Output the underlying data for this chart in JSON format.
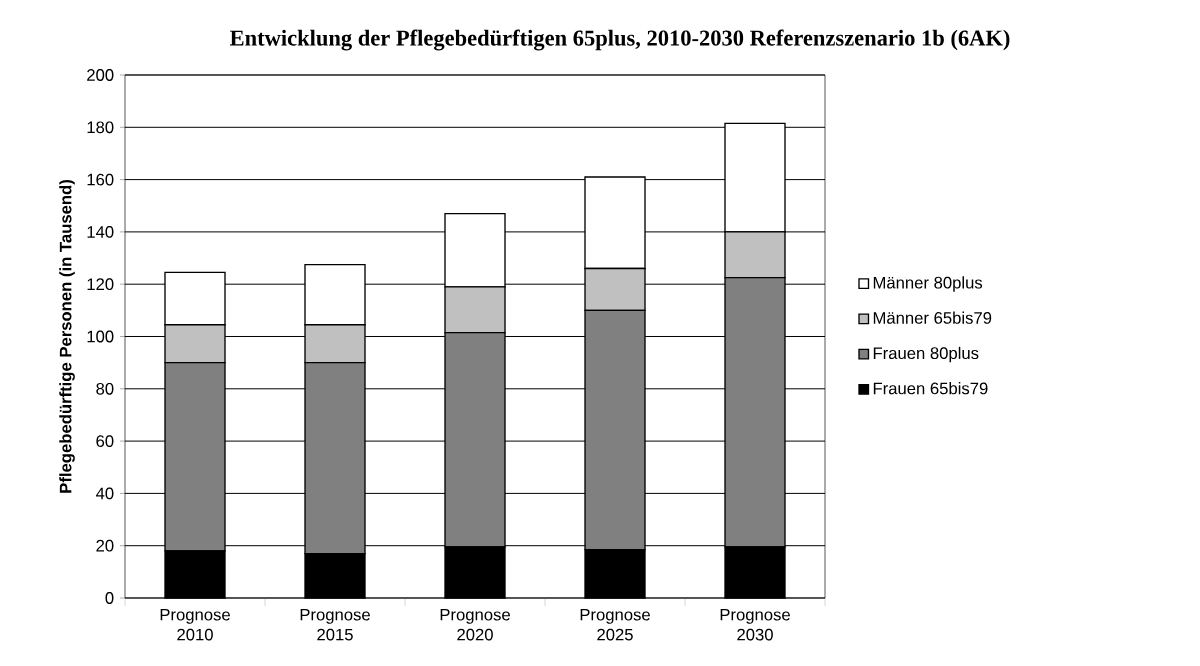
{
  "chart_data": {
    "type": "bar",
    "stacked": true,
    "title": "Entwicklung der Pflegebedürftigen 65plus, 2010-2030 Referenzszenario 1b (6AK)",
    "ylabel": "Pflegebedürftige Personen (in Tausend)",
    "categories": [
      "Prognose 2010",
      "Prognose 2015",
      "Prognose 2020",
      "Prognose 2025",
      "Prognose 2030"
    ],
    "series": [
      {
        "name": "Frauen  65bis79",
        "color": "#000000",
        "values": [
          18,
          17,
          19.5,
          18.5,
          19.5
        ]
      },
      {
        "name": "Frauen  80plus",
        "color": "#808080",
        "values": [
          72,
          73,
          82,
          91.5,
          103
        ]
      },
      {
        "name": "Männer 65bis79",
        "color": "#c0c0c0",
        "values": [
          14.5,
          14.5,
          17.5,
          16,
          17.5
        ]
      },
      {
        "name": "Männer 80plus",
        "color": "#ffffff",
        "values": [
          20,
          23,
          28,
          35,
          41.5
        ]
      }
    ],
    "ylim": [
      0,
      200
    ],
    "yticks": [
      0,
      20,
      40,
      60,
      80,
      100,
      120,
      140,
      160,
      180,
      200
    ],
    "grid": "y",
    "legend": "right"
  }
}
